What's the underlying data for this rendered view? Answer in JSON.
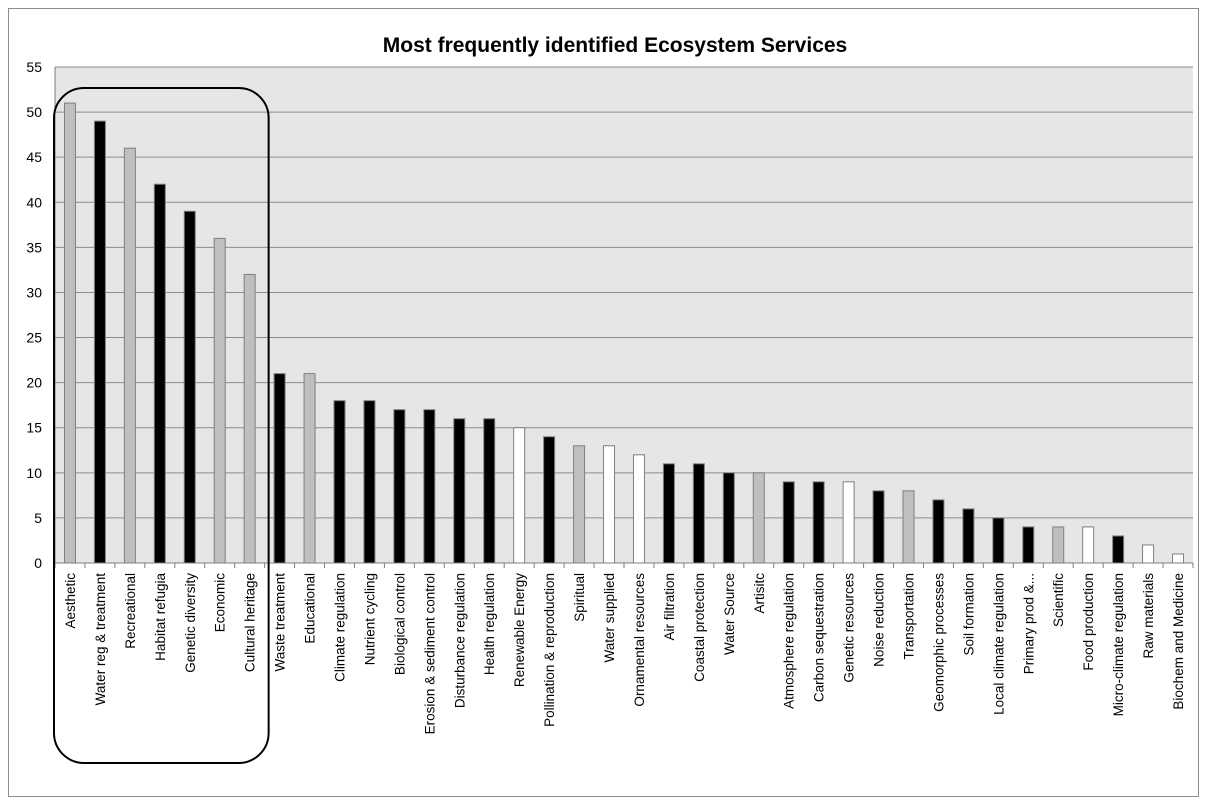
{
  "chart_data": {
    "type": "bar",
    "title": "Most frequently identified Ecosystem Services",
    "xlabel": "",
    "ylabel": "",
    "ylim": [
      0,
      55
    ],
    "yticks": [
      0,
      5,
      10,
      15,
      20,
      25,
      30,
      35,
      40,
      45,
      50,
      55
    ],
    "grid": true,
    "legend": "none",
    "categories": [
      "Aesthetic",
      "Water reg & treatment",
      "Recreational",
      "Habitat refugia",
      "Genetic diversity",
      "Economic",
      "Cultural heritage",
      "Waste treatment",
      "Educational",
      "Climate regulation",
      "Nutrient cycling",
      "Biological control",
      "Erosion & sediment control",
      "Disturbance regulation",
      "Health regulation",
      "Renewable Energy",
      "Pollination & reproduction",
      "Spiritual",
      "Water supplied",
      "Ornamental resources",
      "Air filtration",
      "Coastal protection",
      "Water Source",
      "Artisitc",
      "Atmosphere regulation",
      "Carbon sequestration",
      "Genetic resources",
      "Noise reduction",
      "Transportation",
      "Geomorphic processes",
      "Soil formation",
      "Local climate regulation",
      "Primary prod &...",
      "Scientific",
      "Food production",
      "Micro-climate regulation",
      "Raw materials",
      "Biochem and Medicine"
    ],
    "values": [
      51,
      49,
      46,
      42,
      39,
      36,
      32,
      21,
      21,
      18,
      18,
      17,
      17,
      16,
      16,
      15,
      14,
      13,
      13,
      12,
      11,
      11,
      10,
      10,
      9,
      9,
      9,
      8,
      8,
      7,
      6,
      5,
      4,
      4,
      4,
      3,
      2,
      1
    ],
    "bar_fill": [
      "grey",
      "black",
      "grey",
      "black",
      "black",
      "grey",
      "grey",
      "black",
      "grey",
      "black",
      "black",
      "black",
      "black",
      "black",
      "black",
      "white",
      "black",
      "grey",
      "white",
      "white",
      "black",
      "black",
      "black",
      "grey",
      "black",
      "black",
      "white",
      "black",
      "grey",
      "black",
      "black",
      "black",
      "black",
      "grey",
      "white",
      "black",
      "white",
      "white"
    ],
    "colors": {
      "black": "#000000",
      "grey": "#bfbfbf",
      "white": "#ffffff",
      "plot_bg": "#e6e6e6",
      "grid": "#8c8c8c",
      "bar_edge": "#7f7f7f",
      "highlight_box": "#000000"
    },
    "annotations": [
      {
        "type": "rounded-box",
        "covers_categories": [
          0,
          6
        ]
      }
    ]
  }
}
